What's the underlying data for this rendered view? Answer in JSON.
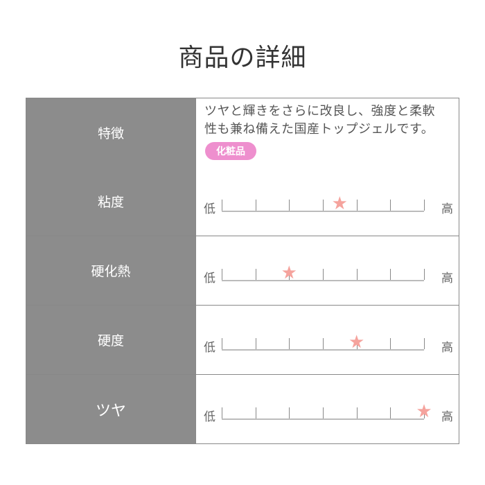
{
  "title": "商品の詳細",
  "features": {
    "label": "特徴",
    "description_line1": "ツヤと輝きをさらに改良し、強度と柔軟",
    "description_line2": "性も兼ね備えた国産トップジェルです。",
    "badge": "化粧品",
    "badge_color": "#ee8fce"
  },
  "scale_low": "低",
  "scale_high": "高",
  "scale_max": 6,
  "star_color": "#f5a39d",
  "ratings": [
    {
      "label": "粘度",
      "value": 3.5
    },
    {
      "label": "硬化熱",
      "value": 2
    },
    {
      "label": "硬度",
      "value": 4
    },
    {
      "label": "ツヤ",
      "value": 6
    }
  ]
}
